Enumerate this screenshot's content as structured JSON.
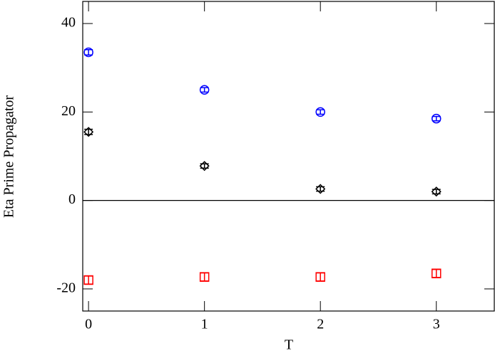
{
  "chart_data": {
    "type": "scatter",
    "xlabel": "T",
    "ylabel": "Eta Prime Propagator",
    "x": [
      0,
      1,
      2,
      3
    ],
    "series": [
      {
        "color": "#0000ff",
        "marker": "circle",
        "values": [
          33.5,
          25,
          20,
          18.5
        ],
        "errors": [
          0.6,
          0.5,
          0.5,
          0.5
        ]
      },
      {
        "color": "#000000",
        "marker": "diamond",
        "values": [
          15.5,
          7.8,
          2.6,
          2.0
        ],
        "errors": [
          0.6,
          0.5,
          0.5,
          0.5
        ]
      },
      {
        "color": "#ff0000",
        "marker": "square",
        "values": [
          -18,
          -17.3,
          -17.3,
          -16.5
        ],
        "errors": [
          0.9,
          0.9,
          0.9,
          0.9
        ]
      }
    ],
    "xlim": [
      -0.05,
      3.5
    ],
    "xticks": [
      0,
      1,
      2,
      3
    ],
    "ylim": [
      -25,
      45
    ],
    "yticks": [
      -20,
      0,
      20,
      40
    ],
    "zero_line": true
  }
}
